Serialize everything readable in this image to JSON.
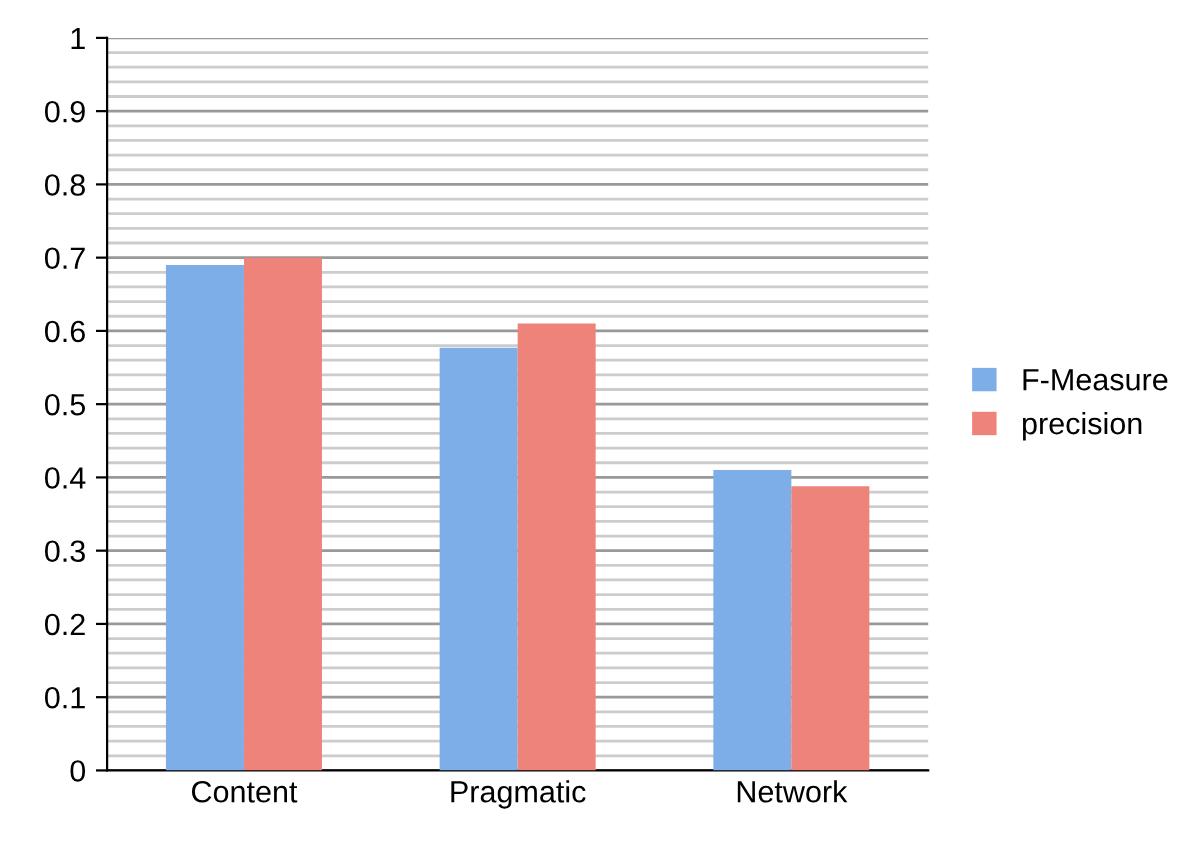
{
  "chart_data": {
    "type": "bar",
    "categories": [
      "Content",
      "Pragmatic",
      "Network"
    ],
    "series": [
      {
        "name": "F-Measure",
        "color": "#7eaee8",
        "values": [
          0.69,
          0.577,
          0.41
        ]
      },
      {
        "name": "precision",
        "color": "#ee837a",
        "values": [
          0.7,
          0.61,
          0.388
        ]
      }
    ],
    "ylim": [
      0,
      1
    ],
    "yticks": [
      0,
      0.1,
      0.2,
      0.3,
      0.4,
      0.5,
      0.6,
      0.7,
      0.8,
      0.9,
      1
    ],
    "grid": "y",
    "legend": "right"
  }
}
